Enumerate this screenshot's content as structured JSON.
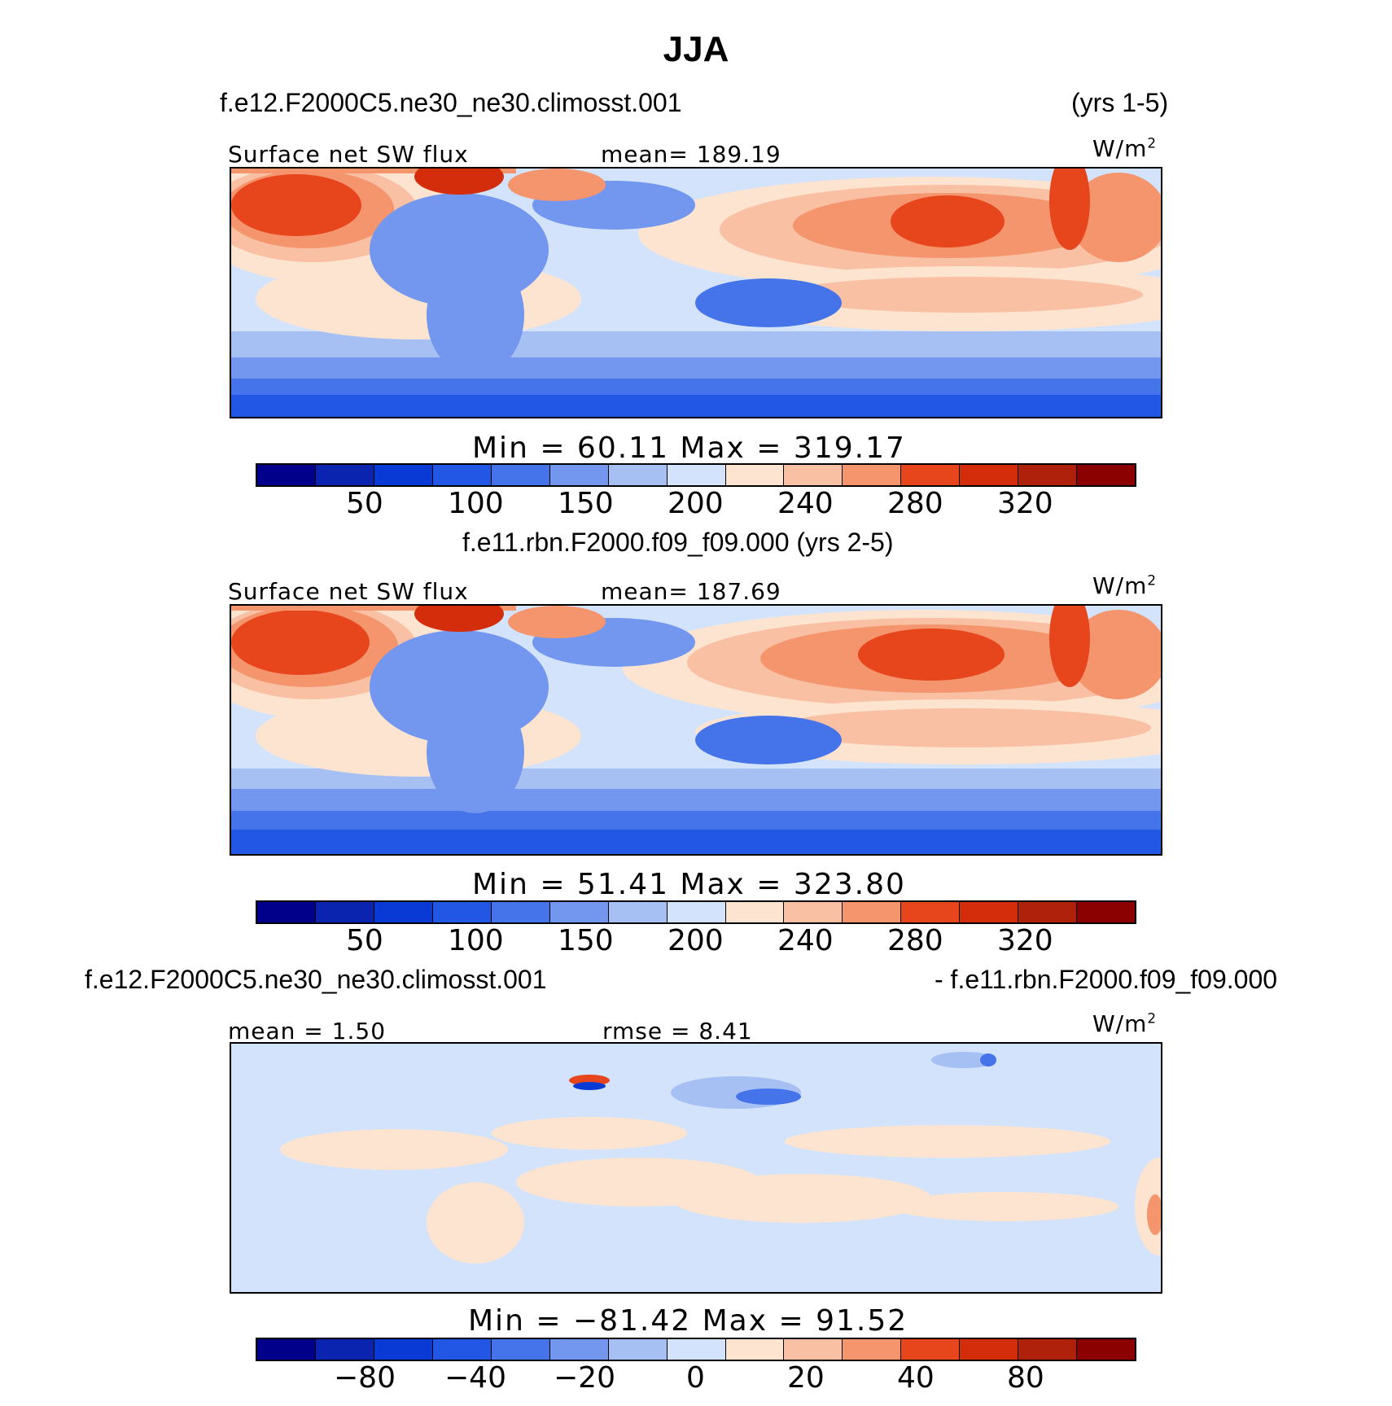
{
  "title": "JJA",
  "panels": [
    {
      "case_left": "f.e12.F2000C5.ne30_ne30.climosst.001",
      "case_right": "(yrs 1-5)",
      "label_left": "Surface net SW flux",
      "label_mid": "mean= 189.19",
      "units": "W/m",
      "units_exp": "2",
      "minmax": "Min  =   60.11  Max  =  319.17",
      "ticks": [
        "50",
        "100",
        "150",
        "200",
        "240",
        "280",
        "320"
      ],
      "colors": [
        "#00008b",
        "#0a24b0",
        "#0a3ad6",
        "#2257e6",
        "#4574ea",
        "#7397ef",
        "#a7c0f4",
        "#d2e3fb",
        "#fde4d0",
        "#f9c0a3",
        "#f4956e",
        "#f06a3c",
        "#e7461d",
        "#d42d0c",
        "#b0210b",
        "#8b0000"
      ]
    },
    {
      "case_left": "f.e11.rbn.F2000.f09_f09.000 (yrs 2-5)",
      "label_left": "Surface net SW flux",
      "label_mid": "mean= 187.69",
      "units": "W/m",
      "units_exp": "2",
      "minmax": "Min  =   51.41  Max  =  323.80",
      "ticks": [
        "50",
        "100",
        "150",
        "200",
        "240",
        "280",
        "320"
      ]
    },
    {
      "case_left": "f.e12.F2000C5.ne30_ne30.climosst.001",
      "case_right": "- f.e11.rbn.F2000.f09_f09.000",
      "label_left": "mean =    1.50",
      "label_mid": "rmse =    8.41",
      "units": "W/m",
      "units_exp": "2",
      "minmax": "Min  =  −81.42  Max  =   91.52",
      "ticks": [
        "−80",
        "−40",
        "−20",
        "0",
        "20",
        "40",
        "80"
      ]
    }
  ]
}
